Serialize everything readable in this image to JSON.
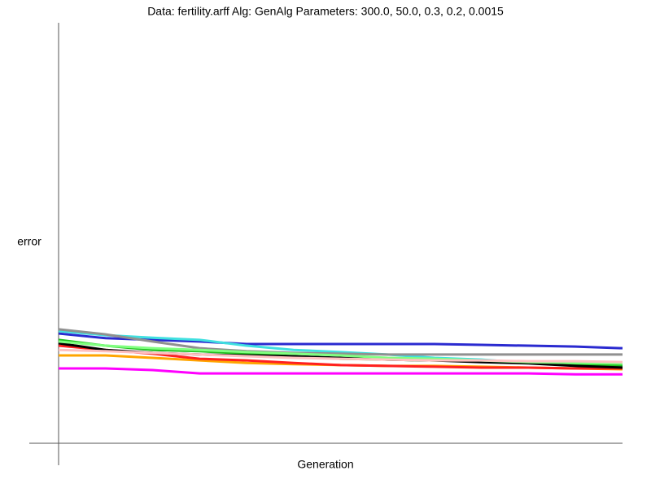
{
  "chart_data": {
    "type": "line",
    "title": "Data: fertility.arff     Alg: GenAlg     Parameters: 300.0, 50.0, 0.3, 0.2, 0.0015",
    "y_label": "error",
    "x_label": "Generation",
    "xlim": [
      0,
      300
    ],
    "ylim": [
      0,
      1
    ],
    "x": [
      0,
      25,
      50,
      75,
      100,
      125,
      150,
      175,
      200,
      225,
      250,
      275,
      300
    ],
    "series": [
      {
        "color": "#2a2ad0",
        "values": [
          0.261,
          0.25,
          0.246,
          0.242,
          0.236,
          0.236,
          0.236,
          0.236,
          0.236,
          0.234,
          0.232,
          0.23,
          0.226
        ]
      },
      {
        "color": "#40e0e0",
        "values": [
          0.267,
          0.257,
          0.251,
          0.246,
          0.232,
          0.222,
          0.217,
          0.211,
          0.203,
          0.199,
          0.191,
          0.188,
          0.184
        ]
      },
      {
        "color": "#909090",
        "values": [
          0.271,
          0.259,
          0.242,
          0.226,
          0.219,
          0.215,
          0.213,
          0.211,
          0.211,
          0.211,
          0.211,
          0.211,
          0.211
        ]
      },
      {
        "color": "#ff00ff",
        "values": [
          0.178,
          0.178,
          0.174,
          0.166,
          0.166,
          0.166,
          0.166,
          0.166,
          0.166,
          0.166,
          0.166,
          0.164,
          0.164
        ]
      },
      {
        "color": "#ffa500",
        "values": [
          0.209,
          0.209,
          0.203,
          0.197,
          0.191,
          0.188,
          0.186,
          0.184,
          0.184,
          0.182,
          0.18,
          0.178,
          0.176
        ]
      },
      {
        "color": "#ff2020",
        "values": [
          0.232,
          0.222,
          0.213,
          0.201,
          0.197,
          0.191,
          0.186,
          0.184,
          0.182,
          0.18,
          0.18,
          0.178,
          0.178
        ]
      },
      {
        "color": "#20c020",
        "values": [
          0.246,
          0.232,
          0.222,
          0.219,
          0.213,
          0.207,
          0.201,
          0.199,
          0.197,
          0.195,
          0.191,
          0.188,
          0.184
        ]
      },
      {
        "color": "#000000",
        "values": [
          0.238,
          0.222,
          0.215,
          0.211,
          0.209,
          0.207,
          0.203,
          0.199,
          0.197,
          0.193,
          0.19,
          0.184,
          0.18
        ]
      },
      {
        "color": "#80ff80",
        "values": [
          0.242,
          0.232,
          0.226,
          0.222,
          0.217,
          0.213,
          0.209,
          0.203,
          0.201,
          0.197,
          0.193,
          0.191,
          0.19
        ]
      },
      {
        "color": "#ffc0c0",
        "values": [
          0.222,
          0.219,
          0.215,
          0.211,
          0.207,
          0.203,
          0.201,
          0.199,
          0.197,
          0.197,
          0.195,
          0.195,
          0.193
        ]
      }
    ]
  }
}
